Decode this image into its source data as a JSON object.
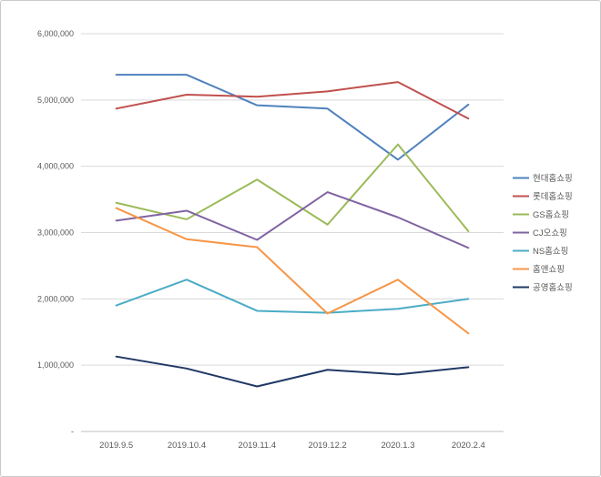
{
  "chart": {
    "frame_border_color": "#c9c9c9",
    "gridline_color": "#d9d9d9",
    "axis_line_color": "#bfbfbf",
    "tick_label_color": "#595959",
    "legend_label_color": "#595959"
  },
  "chart_data": {
    "type": "line",
    "title": "",
    "xlabel": "",
    "ylabel": "",
    "grid": true,
    "legend_position": "right",
    "ylim": [
      0,
      6000000
    ],
    "y_ticks": [
      {
        "value": 0,
        "label": "-"
      },
      {
        "value": 1000000,
        "label": "1,000,000"
      },
      {
        "value": 2000000,
        "label": "2,000,000"
      },
      {
        "value": 3000000,
        "label": "3,000,000"
      },
      {
        "value": 4000000,
        "label": "4,000,000"
      },
      {
        "value": 5000000,
        "label": "5,000,000"
      },
      {
        "value": 6000000,
        "label": "6,000,000"
      }
    ],
    "categories": [
      "2019.9.5",
      "2019.10.4",
      "2019.11.4",
      "2019.12.2",
      "2020.1.3",
      "2020.2.4"
    ],
    "series": [
      {
        "name": "현대홈쇼핑",
        "color": "#4F81BD",
        "values": [
          5380000,
          5380000,
          4920000,
          4870000,
          4100000,
          4930000
        ]
      },
      {
        "name": "롯데홈쇼핑",
        "color": "#C0504D",
        "values": [
          4870000,
          5080000,
          5050000,
          5130000,
          5270000,
          4720000
        ]
      },
      {
        "name": "GS홈쇼핑",
        "color": "#9BBB59",
        "values": [
          3450000,
          3200000,
          3800000,
          3120000,
          4330000,
          3020000
        ]
      },
      {
        "name": "CJ오쇼핑",
        "color": "#8064A2",
        "values": [
          3180000,
          3330000,
          2890000,
          3610000,
          3230000,
          2770000
        ]
      },
      {
        "name": "NS홈쇼핑",
        "color": "#4BACC6",
        "values": [
          1900000,
          2290000,
          1820000,
          1790000,
          1850000,
          2000000
        ]
      },
      {
        "name": "홈앤쇼핑",
        "color": "#F79646",
        "values": [
          3370000,
          2900000,
          2780000,
          1780000,
          2290000,
          1480000
        ]
      },
      {
        "name": "공영홈쇼핑",
        "color": "#1F3864",
        "values": [
          1130000,
          950000,
          680000,
          930000,
          860000,
          970000
        ]
      }
    ]
  }
}
